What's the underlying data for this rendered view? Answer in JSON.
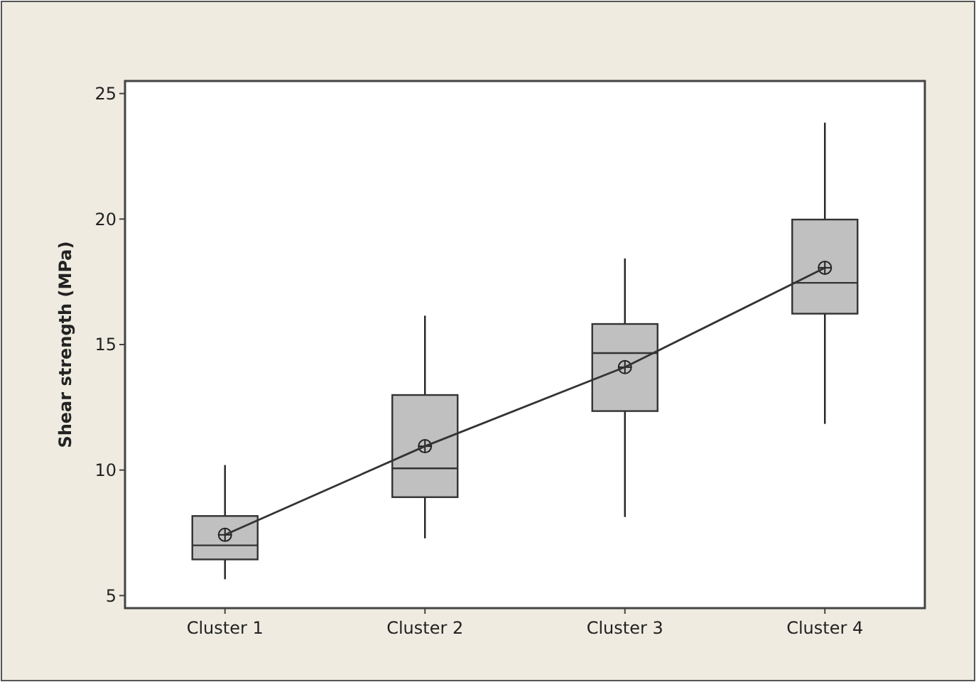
{
  "chart_data": {
    "type": "box",
    "ylabel": "Shear strength (MPa)",
    "categories": [
      "Cluster 1",
      "Cluster 2",
      "Cluster 3",
      "Cluster 4"
    ],
    "ylim": [
      4.5,
      25.5
    ],
    "yticks": [
      5,
      10,
      15,
      20,
      25
    ],
    "grid": false,
    "color": "#c0c0c0",
    "boxes": [
      {
        "low": 5.65,
        "q1": 6.44,
        "median": 7.0,
        "q3": 8.17,
        "high": 10.2,
        "mean": 7.42
      },
      {
        "low": 7.28,
        "q1": 8.92,
        "median": 10.07,
        "q3": 12.99,
        "high": 16.15,
        "mean": 10.95
      },
      {
        "low": 8.13,
        "q1": 12.35,
        "median": 14.66,
        "q3": 15.82,
        "high": 18.43,
        "mean": 14.1
      },
      {
        "low": 11.84,
        "q1": 16.23,
        "median": 17.46,
        "q3": 19.98,
        "high": 23.84,
        "mean": 18.06
      }
    ],
    "series": [
      {
        "type": "line",
        "color": "#333333",
        "values": [
          7.42,
          10.95,
          14.1,
          18.06
        ],
        "marker": "none"
      }
    ]
  }
}
